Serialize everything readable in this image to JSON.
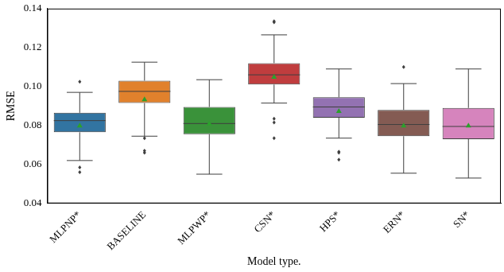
{
  "chart_data": {
    "type": "box",
    "x_label": "Model type.",
    "y_label": "RMSE",
    "categories": [
      "MLPNP*",
      "BASELINE",
      "MLPWP*",
      "CSN*",
      "HPS*",
      "ERN*",
      "SN*"
    ],
    "colors": [
      "#3274a1",
      "#e1812c",
      "#3a923a",
      "#c03d3e",
      "#9372b2",
      "#845b53",
      "#d684bd"
    ],
    "stats": [
      {
        "whisker_low": 0.062,
        "q1": 0.0765,
        "median": 0.0825,
        "q3": 0.0865,
        "whisker_high": 0.097,
        "mean": 0.08,
        "outliers": [
          0.1025,
          0.0585,
          0.056
        ]
      },
      {
        "whisker_low": 0.0745,
        "q1": 0.0915,
        "median": 0.0975,
        "q3": 0.103,
        "whisker_high": 0.1125,
        "mean": 0.0935,
        "outliers": [
          0.0735,
          0.067,
          0.066
        ]
      },
      {
        "whisker_low": 0.055,
        "q1": 0.0755,
        "median": 0.081,
        "q3": 0.0895,
        "whisker_high": 0.1035,
        "mean": 0.081,
        "outliers": []
      },
      {
        "whisker_low": 0.0915,
        "q1": 0.101,
        "median": 0.106,
        "q3": 0.112,
        "whisker_high": 0.1265,
        "mean": 0.105,
        "outliers": [
          0.1335,
          0.133,
          0.0835,
          0.0815,
          0.0735
        ]
      },
      {
        "whisker_low": 0.0735,
        "q1": 0.084,
        "median": 0.0895,
        "q3": 0.0945,
        "whisker_high": 0.109,
        "mean": 0.0875,
        "outliers": [
          0.0665,
          0.066,
          0.0625
        ]
      },
      {
        "whisker_low": 0.0555,
        "q1": 0.0745,
        "median": 0.0805,
        "q3": 0.088,
        "whisker_high": 0.1015,
        "mean": 0.08,
        "outliers": [
          0.11
        ]
      },
      {
        "whisker_low": 0.053,
        "q1": 0.073,
        "median": 0.0795,
        "q3": 0.089,
        "whisker_high": 0.109,
        "mean": 0.08,
        "outliers": []
      }
    ],
    "ylim": [
      0.04,
      0.14
    ],
    "yticks": [
      0.04,
      0.06,
      0.08,
      {
        "value": 0.1,
        "label": "0.10"
      },
      0.12,
      0.14
    ],
    "grid": false,
    "mean_color": "#2ca02c",
    "marker": "triangle"
  }
}
